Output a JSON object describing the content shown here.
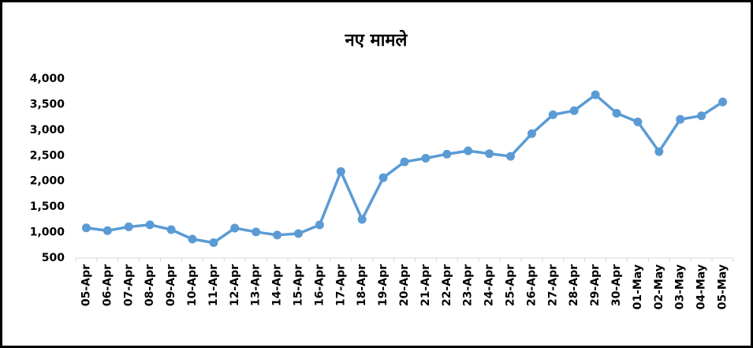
{
  "chart_data": {
    "type": "line",
    "title": "नए मामले",
    "categories": [
      "05-Apr",
      "06-Apr",
      "07-Apr",
      "08-Apr",
      "09-Apr",
      "10-Apr",
      "11-Apr",
      "12-Apr",
      "13-Apr",
      "14-Apr",
      "15-Apr",
      "16-Apr",
      "17-Apr",
      "18-Apr",
      "19-Apr",
      "20-Apr",
      "21-Apr",
      "22-Apr",
      "23-Apr",
      "24-Apr",
      "25-Apr",
      "26-Apr",
      "27-Apr",
      "28-Apr",
      "29-Apr",
      "30-Apr",
      "01-May",
      "02-May",
      "03-May",
      "04-May",
      "05-May"
    ],
    "values": [
      1090,
      1035,
      1110,
      1150,
      1055,
      870,
      800,
      1085,
      1010,
      950,
      978,
      1147,
      2190,
      1255,
      2070,
      2380,
      2450,
      2530,
      2595,
      2540,
      2488,
      2930,
      3300,
      3380,
      3690,
      3330,
      3160,
      2580,
      3210,
      3280,
      3550
    ],
    "color": "#5b9bd5",
    "ylim": [
      500,
      4000
    ],
    "yticks": [
      500,
      {
        "value": 1000,
        "label": "1,000"
      },
      {
        "value": 1500,
        "label": "1,500"
      },
      {
        "value": 2000,
        "label": "2,000"
      },
      {
        "value": 2500,
        "label": "2,500"
      },
      {
        "value": 3000,
        "label": "3,000"
      },
      {
        "value": 3500,
        "label": "3,500"
      },
      {
        "value": 4000,
        "label": "4,000"
      }
    ],
    "grid": false
  }
}
